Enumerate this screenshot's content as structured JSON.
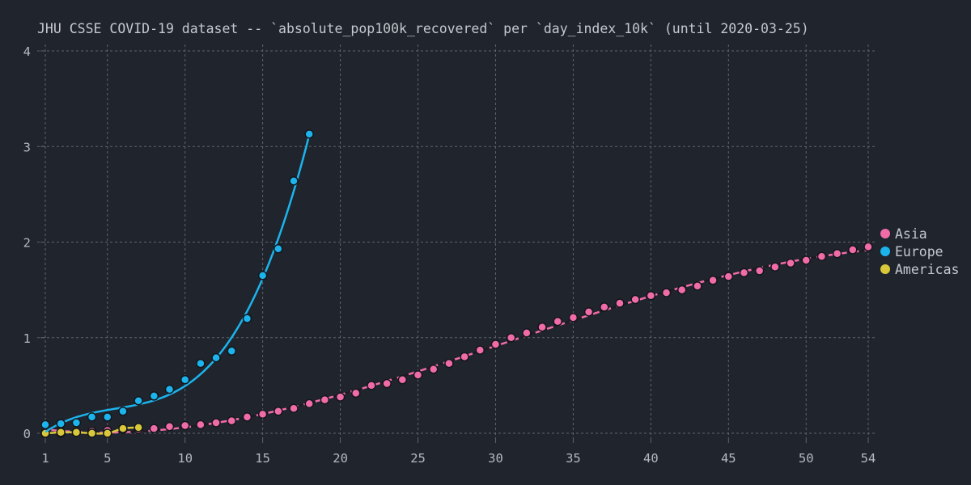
{
  "chart_data": {
    "type": "line",
    "title": "JHU CSSE COVID-19 dataset -- `absolute_pop100k_recovered` per `day_index_10k` (until 2020-03-25)",
    "xlabel": "",
    "ylabel": "",
    "xlim": [
      1,
      54
    ],
    "ylim": [
      0,
      4
    ],
    "xticks": [
      1,
      5,
      10,
      15,
      20,
      25,
      30,
      35,
      40,
      45,
      50,
      54
    ],
    "yticks": [
      0,
      1,
      2,
      3,
      4
    ],
    "grid": true,
    "legend_position": "right",
    "series": [
      {
        "name": "Asia",
        "color": "#f06ca8",
        "dashed": true,
        "x": [
          1,
          2,
          3,
          4,
          5,
          6,
          7,
          8,
          9,
          10,
          11,
          12,
          13,
          14,
          15,
          16,
          17,
          18,
          19,
          20,
          21,
          22,
          23,
          24,
          25,
          26,
          27,
          28,
          29,
          30,
          31,
          32,
          33,
          34,
          35,
          36,
          37,
          38,
          39,
          40,
          41,
          42,
          43,
          44,
          45,
          46,
          47,
          48,
          49,
          50,
          51,
          52,
          53,
          54
        ],
        "y": [
          0.0,
          0.0,
          0.01,
          0.02,
          0.03,
          0.04,
          0.04,
          0.05,
          0.07,
          0.08,
          0.09,
          0.11,
          0.13,
          0.17,
          0.2,
          0.23,
          0.26,
          0.31,
          0.35,
          0.38,
          0.42,
          0.5,
          0.52,
          0.56,
          0.61,
          0.67,
          0.73,
          0.8,
          0.87,
          0.93,
          1.0,
          1.05,
          1.11,
          1.17,
          1.21,
          1.27,
          1.32,
          1.36,
          1.4,
          1.44,
          1.47,
          1.5,
          1.54,
          1.6,
          1.64,
          1.68,
          1.7,
          1.74,
          1.78,
          1.81,
          1.85,
          1.88,
          1.92,
          1.95
        ]
      },
      {
        "name": "Europe",
        "color": "#1cb4ec",
        "dashed": false,
        "x": [
          1,
          2,
          3,
          4,
          5,
          6,
          7,
          8,
          9,
          10,
          11,
          12,
          13,
          14,
          15,
          16,
          17,
          18
        ],
        "y": [
          0.09,
          0.1,
          0.11,
          0.17,
          0.17,
          0.23,
          0.34,
          0.39,
          0.46,
          0.56,
          0.73,
          0.79,
          0.86,
          1.2,
          1.65,
          1.93,
          2.64,
          3.13
        ]
      },
      {
        "name": "Americas",
        "color": "#d8c83a",
        "dashed": false,
        "x": [
          1,
          2,
          3,
          4,
          5,
          6,
          7
        ],
        "y": [
          0.0,
          0.01,
          0.01,
          0.0,
          0.0,
          0.05,
          0.06
        ]
      }
    ]
  }
}
